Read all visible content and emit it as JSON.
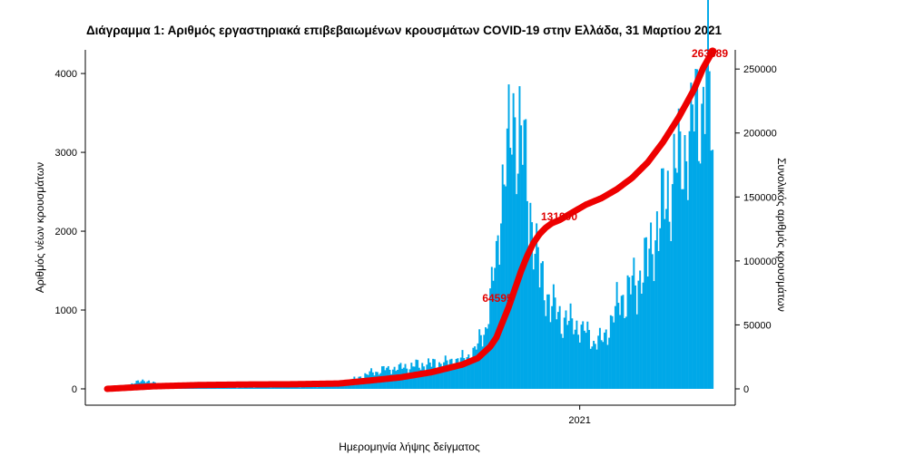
{
  "chart_data": {
    "type": "bar+line",
    "title": "Διάγραμμα 1: Αριθμός εργαστηριακά επιβεβαιωμένων κρουσμάτων COVID-19 στην Ελλάδα, 31 Μαρτίου 2021",
    "xlabel": "Ημερομηνία λήψης δείγματος",
    "ylabel_left": "Αριθμός νέων κρουσμάτων",
    "ylabel_right": "Συνολικός αριθμός κρουσμάτων",
    "x_tick_labels": [
      "2021"
    ],
    "y_left_ticks": [
      "0",
      "1000",
      "2000",
      "3000",
      "4000"
    ],
    "y_right_ticks": [
      "0",
      "50000",
      "100000",
      "150000",
      "200000",
      "250000"
    ],
    "ylim_left": [
      0,
      4300
    ],
    "ylim_right": [
      0,
      265000
    ],
    "grid": false,
    "colors": {
      "bars": "#00a8e8",
      "cumulative_line": "#ee0000",
      "annotation": "#e00000"
    },
    "series": [
      {
        "name": "",
        "kind": "bar",
        "axis": "left",
        "x_range_days": [
          0,
          392
        ],
        "year_tick_day": 306,
        "keypoints": [
          [
            0,
            10
          ],
          [
            10,
            30
          ],
          [
            18,
            80
          ],
          [
            25,
            110
          ],
          [
            32,
            60
          ],
          [
            45,
            40
          ],
          [
            60,
            25
          ],
          [
            80,
            15
          ],
          [
            100,
            20
          ],
          [
            120,
            25
          ],
          [
            140,
            30
          ],
          [
            150,
            60
          ],
          [
            160,
            120
          ],
          [
            170,
            200
          ],
          [
            180,
            250
          ],
          [
            190,
            270
          ],
          [
            200,
            300
          ],
          [
            210,
            320
          ],
          [
            220,
            330
          ],
          [
            230,
            380
          ],
          [
            235,
            420
          ],
          [
            240,
            550
          ],
          [
            245,
            800
          ],
          [
            248,
            1100
          ],
          [
            250,
            1400
          ],
          [
            252,
            1700
          ],
          [
            254,
            2200
          ],
          [
            256,
            2600
          ],
          [
            258,
            2900
          ],
          [
            260,
            3050
          ],
          [
            262,
            3300
          ],
          [
            264,
            3550
          ],
          [
            266,
            3400
          ],
          [
            268,
            3200
          ],
          [
            270,
            2900
          ],
          [
            272,
            2600
          ],
          [
            274,
            2300
          ],
          [
            276,
            2000
          ],
          [
            278,
            1700
          ],
          [
            280,
            1500
          ],
          [
            283,
            1300
          ],
          [
            286,
            1150
          ],
          [
            290,
            1000
          ],
          [
            295,
            900
          ],
          [
            300,
            850
          ],
          [
            305,
            800
          ],
          [
            310,
            720
          ],
          [
            315,
            620
          ],
          [
            320,
            600
          ],
          [
            325,
            800
          ],
          [
            330,
            1050
          ],
          [
            335,
            1200
          ],
          [
            340,
            1300
          ],
          [
            345,
            1450
          ],
          [
            350,
            1650
          ],
          [
            355,
            2000
          ],
          [
            360,
            2300
          ],
          [
            365,
            2650
          ],
          [
            370,
            2900
          ],
          [
            375,
            3100
          ],
          [
            380,
            3450
          ],
          [
            385,
            3750
          ],
          [
            389,
            4000
          ],
          [
            392,
            3100
          ]
        ]
      },
      {
        "name": "",
        "kind": "line",
        "axis": "right",
        "keypoints": [
          [
            0,
            0
          ],
          [
            30,
            2000
          ],
          [
            60,
            3000
          ],
          [
            90,
            3400
          ],
          [
            120,
            3600
          ],
          [
            150,
            4200
          ],
          [
            170,
            6500
          ],
          [
            190,
            9000
          ],
          [
            210,
            13000
          ],
          [
            230,
            19000
          ],
          [
            240,
            24000
          ],
          [
            248,
            33000
          ],
          [
            252,
            40000
          ],
          [
            256,
            52000
          ],
          [
            260,
            64000
          ],
          [
            264,
            78000
          ],
          [
            268,
            92000
          ],
          [
            272,
            104000
          ],
          [
            276,
            114000
          ],
          [
            280,
            121000
          ],
          [
            284,
            126000
          ],
          [
            288,
            129500
          ],
          [
            293,
            132000
          ],
          [
            300,
            137000
          ],
          [
            310,
            144000
          ],
          [
            320,
            149000
          ],
          [
            330,
            156000
          ],
          [
            340,
            165000
          ],
          [
            350,
            177000
          ],
          [
            360,
            193000
          ],
          [
            370,
            212000
          ],
          [
            380,
            234000
          ],
          [
            386,
            251000
          ],
          [
            392,
            263689
          ]
        ]
      }
    ],
    "annotations": [
      "263689",
      "131900",
      "64595"
    ]
  }
}
